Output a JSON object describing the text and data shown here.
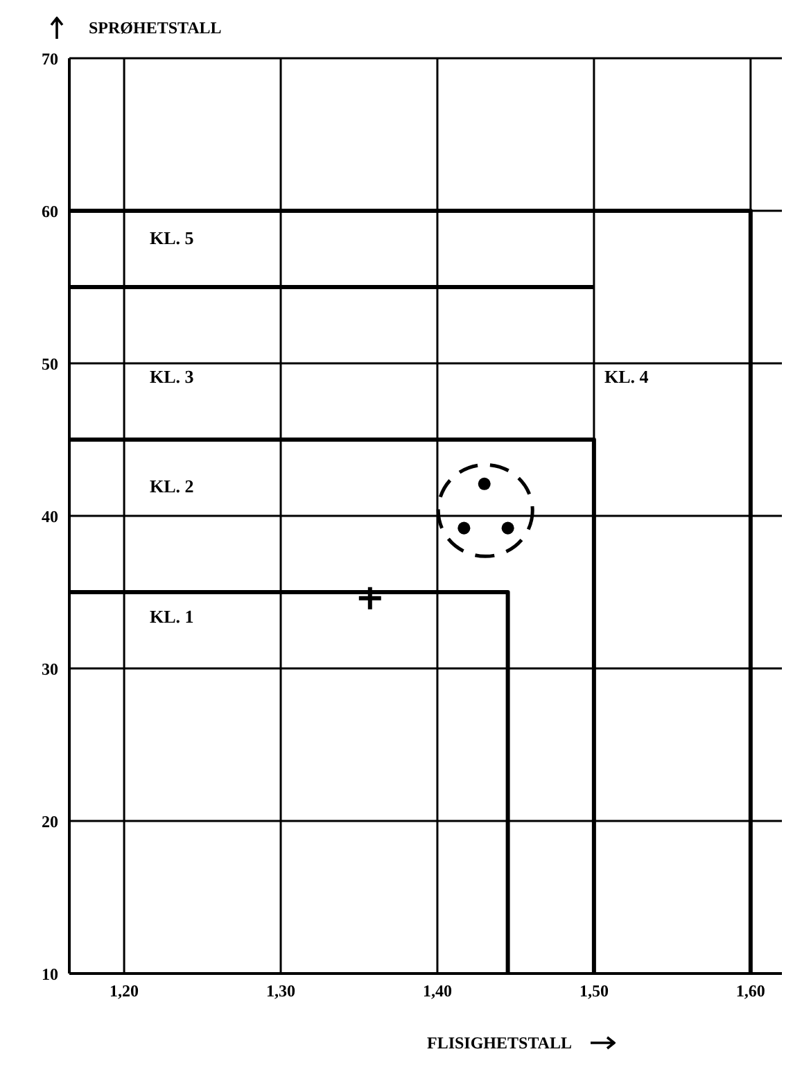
{
  "chart_data": {
    "type": "scatter",
    "xlabel": "FLISIGHETSTALL",
    "ylabel": "SPRØHETSTALL",
    "xlim": [
      1.165,
      1.62
    ],
    "ylim": [
      10,
      70
    ],
    "xticks": [
      {
        "value": 1.2,
        "label": "1,20"
      },
      {
        "value": 1.3,
        "label": "1,30"
      },
      {
        "value": 1.4,
        "label": "1,40"
      },
      {
        "value": 1.5,
        "label": "1,50"
      },
      {
        "value": 1.6,
        "label": "1,60"
      }
    ],
    "yticks": [
      10,
      20,
      30,
      40,
      50,
      60,
      70
    ],
    "grid": true,
    "series": [
      {
        "type": "line",
        "color": "#000000",
        "marker": "none",
        "x": [
          1.165,
          1.445,
          1.445
        ],
        "values": [
          35,
          35,
          10
        ]
      },
      {
        "type": "line",
        "color": "#000000",
        "marker": "none",
        "x": [
          1.165,
          1.5,
          1.5
        ],
        "values": [
          45,
          45,
          10
        ]
      },
      {
        "type": "line",
        "color": "#000000",
        "marker": "none",
        "x": [
          1.165,
          1.5
        ],
        "values": [
          55,
          55
        ]
      },
      {
        "type": "line",
        "color": "#000000",
        "marker": "none",
        "x": [
          1.165,
          1.6,
          1.6
        ],
        "values": [
          60,
          60,
          10
        ]
      },
      {
        "color": "#000000",
        "marker": "circle",
        "x": [
          1.417,
          1.445,
          1.43
        ],
        "values": [
          39.2,
          39.2,
          42.1
        ]
      },
      {
        "color": "#000000",
        "marker": "cross",
        "x": [
          1.357
        ],
        "values": [
          34.6
        ]
      }
    ],
    "annotations": [
      "KL. 5",
      "KL. 3",
      "KL. 2",
      "KL. 1",
      "KL. 4"
    ]
  }
}
